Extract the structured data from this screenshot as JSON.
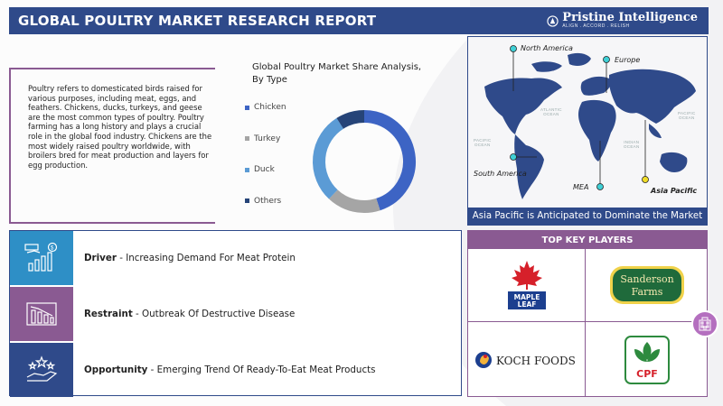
{
  "header": {
    "title": "GLOBAL POULTRY MARKET RESEARCH REPORT",
    "brand_name": "Pristine Intelligence",
    "brand_tagline": "ALIGN . ACCORD . RELISH"
  },
  "description": "Poultry refers to domesticated birds raised for various purposes, including meat, eggs, and feathers. Chickens, ducks, turkeys, and geese are the most common types of poultry. Poultry farming has a long history and plays a crucial role in the global food industry. Chickens are the most widely raised poultry worldwide, with broilers bred for meat production and layers for egg production.",
  "chart_data": {
    "type": "pie",
    "title": "Global Poultry Market Share Analysis, By Type",
    "categories": [
      "Chicken",
      "Turkey",
      "Duck",
      "Others"
    ],
    "values": [
      45,
      17,
      29,
      9
    ],
    "colors": [
      "#3d64c4",
      "#a5a5a5",
      "#5b9bd5",
      "#264478"
    ],
    "donut": true
  },
  "map": {
    "regions": [
      "North America",
      "Europe",
      "South America",
      "MEA",
      "Asia Pacific"
    ],
    "highlight": "Asia Pacific",
    "oceans": [
      "ATLANTIC\nOCEAN",
      "PACIFIC\nOCEAN",
      "INDIAN\nOCEAN",
      "PACIFIC\nOCEAN"
    ],
    "caption": "Asia Pacific is Anticipated to Dominate the Market"
  },
  "factors": [
    {
      "label": "Driver",
      "text": " - Increasing Demand For Meat Protein",
      "icon": "chart-growth-icon",
      "color": "#2e8fc6"
    },
    {
      "label": "Restraint",
      "text": " - Outbreak Of Destructive Disease",
      "icon": "declining-chart-icon",
      "color": "#8a5a92"
    },
    {
      "label": "Opportunity",
      "text": " - Emerging Trend Of Ready-To-Eat Meat Products",
      "icon": "hand-stars-icon",
      "color": "#2f4a8a"
    }
  ],
  "players": {
    "title": "TOP KEY PLAYERS",
    "logos": [
      "MAPLE\nLEAF",
      "Sanderson\nFarms",
      "KOCH FOODS",
      "CPF"
    ]
  }
}
